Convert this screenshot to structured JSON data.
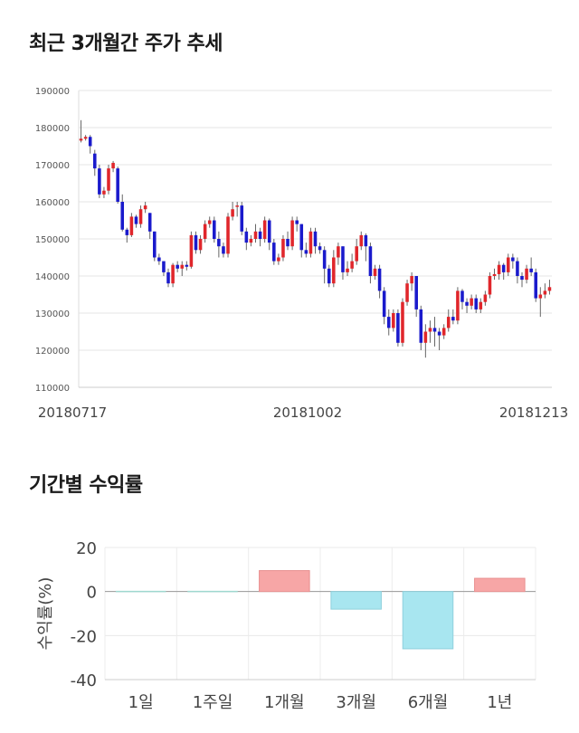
{
  "sections": {
    "price_title": "최근 3개월간 주가 추세",
    "returns_title": "기간별 수익률"
  },
  "chart_data": [
    {
      "type": "candlestick",
      "title": "최근 3개월간 주가 추세",
      "y_ticks": [
        "190000",
        "180000",
        "170000",
        "160000",
        "150000",
        "140000",
        "130000",
        "120000",
        "110000"
      ],
      "ylim": [
        110000,
        190000
      ],
      "x_labels": [
        "20180717",
        "20181002",
        "20181213"
      ],
      "grid": true,
      "colors": {
        "up": "#e0262b",
        "down": "#1a1acc",
        "wick": "#666666"
      },
      "candles": [
        [
          176500,
          177000,
          182000,
          176000
        ],
        [
          177000,
          177500,
          178000,
          176500
        ],
        [
          177500,
          175000,
          178000,
          173000
        ],
        [
          173000,
          169000,
          174000,
          167000
        ],
        [
          169000,
          162000,
          170000,
          161000
        ],
        [
          162000,
          163000,
          164000,
          161000
        ],
        [
          163000,
          169000,
          170000,
          162000
        ],
        [
          169000,
          170500,
          171000,
          168000
        ],
        [
          169000,
          160000,
          169500,
          159500
        ],
        [
          160000,
          152500,
          162000,
          152000
        ],
        [
          152500,
          151000,
          153000,
          149000
        ],
        [
          151000,
          156000,
          157000,
          150500
        ],
        [
          156000,
          154000,
          156500,
          153000
        ],
        [
          154000,
          158000,
          159000,
          153000
        ],
        [
          158000,
          159000,
          160000,
          157000
        ],
        [
          157000,
          152000,
          157000,
          150000
        ],
        [
          152000,
          145000,
          152000,
          144000
        ],
        [
          145000,
          144000,
          146000,
          143000
        ],
        [
          144000,
          141000,
          144000,
          140000
        ],
        [
          141000,
          138000,
          142000,
          137000
        ],
        [
          138000,
          143000,
          143500,
          137000
        ],
        [
          143000,
          142000,
          144000,
          141000
        ],
        [
          142000,
          143000,
          144000,
          140000
        ],
        [
          143000,
          142500,
          144000,
          141500
        ],
        [
          142500,
          151000,
          152000,
          142000
        ],
        [
          151000,
          147000,
          152000,
          146000
        ],
        [
          147000,
          150000,
          151000,
          146000
        ],
        [
          150000,
          154000,
          155000,
          149000
        ],
        [
          154000,
          155000,
          156000,
          153000
        ],
        [
          155000,
          150000,
          156000,
          149000
        ],
        [
          150000,
          148000,
          152000,
          145000
        ],
        [
          148000,
          146000,
          149000,
          145000
        ],
        [
          146000,
          156000,
          157000,
          145000
        ],
        [
          156000,
          158000,
          160000,
          155000
        ],
        [
          159000,
          159000,
          160000,
          156000
        ],
        [
          159000,
          152000,
          160000,
          151000
        ],
        [
          152000,
          149000,
          153000,
          147000
        ],
        [
          149000,
          150000,
          151000,
          148000
        ],
        [
          150000,
          152000,
          154000,
          149000
        ],
        [
          152000,
          150000,
          153000,
          148000
        ],
        [
          150000,
          155000,
          156000,
          149000
        ],
        [
          155000,
          149000,
          155500,
          147000
        ],
        [
          149000,
          144000,
          150000,
          143000
        ],
        [
          144000,
          145000,
          146000,
          143000
        ],
        [
          145000,
          150000,
          151000,
          144000
        ],
        [
          150000,
          148000,
          152000,
          147000
        ],
        [
          148000,
          155000,
          156000,
          147000
        ],
        [
          155000,
          154000,
          156000,
          152000
        ],
        [
          154000,
          147000,
          154000,
          145000
        ],
        [
          147000,
          146000,
          149000,
          145000
        ],
        [
          146000,
          152000,
          153000,
          145000
        ],
        [
          152000,
          148000,
          153000,
          146000
        ],
        [
          148000,
          147000,
          149000,
          146000
        ],
        [
          147000,
          142000,
          148000,
          138000
        ],
        [
          142000,
          138000,
          143000,
          137000
        ],
        [
          138000,
          145000,
          147000,
          137000
        ],
        [
          145000,
          148000,
          149000,
          143000
        ],
        [
          148000,
          141000,
          148000,
          139000
        ],
        [
          141000,
          142000,
          144000,
          140000
        ],
        [
          142000,
          144000,
          146000,
          141000
        ],
        [
          144000,
          148000,
          150000,
          143000
        ],
        [
          148000,
          151000,
          152000,
          147000
        ],
        [
          151000,
          148000,
          151500,
          144000
        ],
        [
          148000,
          140000,
          149000,
          138000
        ],
        [
          140000,
          142000,
          143000,
          139000
        ],
        [
          142000,
          136000,
          143000,
          134000
        ],
        [
          136000,
          129000,
          137000,
          127000
        ],
        [
          129000,
          126000,
          131000,
          124000
        ],
        [
          126000,
          130000,
          131000,
          125000
        ],
        [
          130000,
          122000,
          131000,
          121000
        ],
        [
          122000,
          133000,
          134000,
          121000
        ],
        [
          133000,
          138000,
          139000,
          132000
        ],
        [
          138000,
          140000,
          141000,
          136000
        ],
        [
          140000,
          131000,
          140000,
          129000
        ],
        [
          131000,
          122000,
          132000,
          120000
        ],
        [
          122000,
          125000,
          127000,
          118000
        ],
        [
          125000,
          126000,
          128000,
          122000
        ],
        [
          126000,
          125000,
          129000,
          121000
        ],
        [
          125000,
          124000,
          126000,
          120000
        ],
        [
          124000,
          126000,
          127000,
          123000
        ],
        [
          126000,
          129000,
          131000,
          125000
        ],
        [
          129000,
          128000,
          131000,
          127000
        ],
        [
          128000,
          136000,
          137000,
          127000
        ],
        [
          136000,
          133000,
          136500,
          131000
        ],
        [
          133000,
          132000,
          134000,
          130000
        ],
        [
          132000,
          134000,
          135000,
          131000
        ],
        [
          134000,
          131000,
          135000,
          130000
        ],
        [
          131000,
          133000,
          134000,
          130000
        ],
        [
          133000,
          135000,
          136000,
          132000
        ],
        [
          135000,
          140000,
          141000,
          134000
        ],
        [
          140000,
          140500,
          142000,
          139000
        ],
        [
          140500,
          143000,
          144000,
          139000
        ],
        [
          143000,
          141000,
          143500,
          139000
        ],
        [
          141000,
          145000,
          146000,
          140000
        ],
        [
          145000,
          144000,
          146000,
          142000
        ],
        [
          144000,
          140000,
          145000,
          138000
        ],
        [
          140000,
          139000,
          141000,
          137000
        ],
        [
          139000,
          142000,
          143000,
          138000
        ],
        [
          142000,
          141000,
          145000,
          140000
        ],
        [
          141000,
          134000,
          142000,
          133000
        ],
        [
          134000,
          135000,
          137000,
          129000
        ],
        [
          135000,
          136000,
          138000,
          134000
        ],
        [
          136000,
          137000,
          139000,
          135000
        ]
      ]
    },
    {
      "type": "bar",
      "title": "기간별 수익률",
      "categories": [
        "1일",
        "1주일",
        "1개월",
        "3개월",
        "6개월",
        "1년"
      ],
      "values": [
        0,
        0,
        9.5,
        -8,
        -26,
        6
      ],
      "ylabel": "수익률(%)",
      "ylim": [
        -40,
        20
      ],
      "y_ticks": [
        "20",
        "0",
        "-20",
        "-40"
      ],
      "grid": true,
      "colors": {
        "positive": "#f7a6a6",
        "negative": "#a8e6f0",
        "zero_line": "#999999"
      }
    }
  ]
}
